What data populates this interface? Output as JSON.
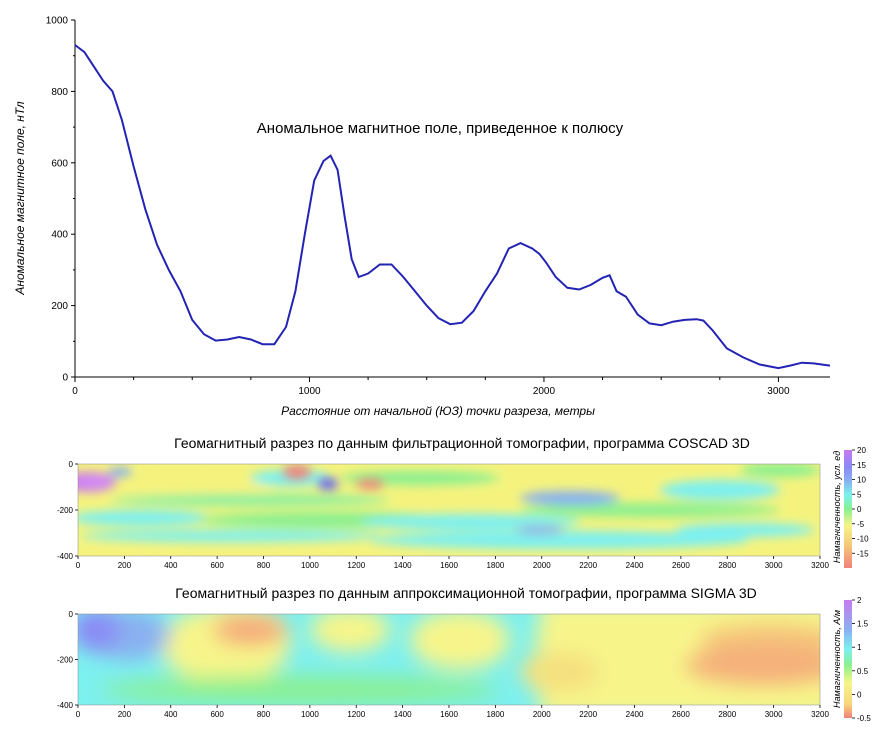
{
  "chart_data": [
    {
      "type": "line",
      "annotation": "Аномальное магнитное поле, приведенное к полюсу",
      "xlabel": "Расстояние от начальной (ЮЗ) точки разреза, метры",
      "ylabel": "Аномальное магнитное поле, нТл",
      "xlim": [
        0,
        3220
      ],
      "ylim": [
        0,
        1000
      ],
      "x_ticks": [
        "0",
        "1000",
        "2000",
        "3000"
      ],
      "y_ticks": [
        "0",
        "200",
        "400",
        "600",
        "800",
        "1000"
      ],
      "line_color": "#2323b4",
      "series": [
        {
          "x": [
            0,
            40,
            80,
            120,
            160,
            200,
            250,
            300,
            350,
            400,
            450,
            500,
            550,
            600,
            650,
            700,
            750,
            800,
            850,
            900,
            940,
            980,
            1020,
            1060,
            1090,
            1120,
            1150,
            1180,
            1210,
            1250,
            1300,
            1350,
            1400,
            1450,
            1500,
            1550,
            1600,
            1650,
            1700,
            1750,
            1800,
            1850,
            1900,
            1950,
            1980,
            2010,
            2050,
            2100,
            2150,
            2200,
            2250,
            2280,
            2310,
            2350,
            2400,
            2450,
            2500,
            2550,
            2600,
            2650,
            2680,
            2720,
            2780,
            2850,
            2920,
            3000,
            3050,
            3100,
            3150,
            3220
          ],
          "y": [
            930,
            910,
            870,
            830,
            800,
            720,
            590,
            470,
            370,
            300,
            240,
            160,
            120,
            102,
            105,
            112,
            105,
            92,
            92,
            140,
            240,
            400,
            550,
            605,
            620,
            580,
            450,
            330,
            280,
            290,
            315,
            315,
            280,
            240,
            200,
            165,
            148,
            152,
            185,
            240,
            290,
            360,
            375,
            360,
            345,
            320,
            280,
            250,
            245,
            258,
            278,
            285,
            240,
            225,
            175,
            150,
            145,
            155,
            160,
            162,
            158,
            130,
            80,
            55,
            35,
            25,
            32,
            40,
            38,
            32
          ]
        }
      ]
    },
    {
      "type": "heatmap",
      "title": "Геомагнитный разрез по данным фильтрационной томографии, программа COSCAD 3D",
      "xlim": [
        0,
        3200
      ],
      "ylim": [
        -400,
        0
      ],
      "x_ticks": [
        "0",
        "200",
        "400",
        "600",
        "800",
        "1000",
        "1200",
        "1400",
        "1600",
        "1800",
        "2000",
        "2200",
        "2400",
        "2600",
        "2800",
        "3000",
        "3200"
      ],
      "y_ticks": [
        "0",
        "-200",
        "-400"
      ],
      "colorbar_label": "Намагниченность, усл. ед",
      "colorbar_ticks": [
        "20",
        "15",
        "10",
        "5",
        "0",
        "-5",
        "-10",
        "-15"
      ],
      "colorbar_range": [
        -20,
        20
      ],
      "colors": [
        "#f0827a",
        "#f5c47a",
        "#f7f58a",
        "#8af090",
        "#7df0f0",
        "#8ab0f0",
        "#8a8af5",
        "#c87af0"
      ]
    },
    {
      "type": "heatmap",
      "title": "Геомагнитный разрез по данным аппроксимационной томографии, программа SIGMA 3D",
      "xlim": [
        0,
        3200
      ],
      "ylim": [
        -400,
        0
      ],
      "x_ticks": [
        "0",
        "200",
        "400",
        "600",
        "800",
        "1000",
        "1200",
        "1400",
        "1600",
        "1800",
        "2000",
        "2200",
        "2400",
        "2600",
        "2800",
        "3000",
        "3200"
      ],
      "y_ticks": [
        "0",
        "-200",
        "-400"
      ],
      "colorbar_label": "Намагниченность, А/м",
      "colorbar_ticks": [
        "2",
        "1.5",
        "1",
        "0.5",
        "0",
        "-0.5"
      ],
      "colorbar_range": [
        -0.5,
        2
      ],
      "colors": [
        "#f0827a",
        "#f7d77a",
        "#f7f58a",
        "#8af090",
        "#7df0f0",
        "#8ab0f0",
        "#c87af0"
      ]
    }
  ]
}
